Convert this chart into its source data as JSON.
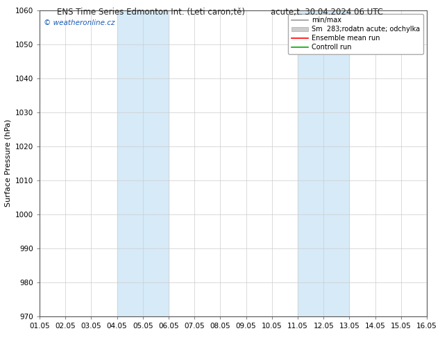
{
  "title_left": "ENS Time Series Edmonton Int. (Leti caron;tě)",
  "title_right": "acute;t. 30.04.2024 06 UTC",
  "ylabel": "Surface Pressure (hPa)",
  "ylim": [
    970,
    1060
  ],
  "yticks": [
    970,
    980,
    990,
    1000,
    1010,
    1020,
    1030,
    1040,
    1050,
    1060
  ],
  "xtick_labels": [
    "01.05",
    "02.05",
    "03.05",
    "04.05",
    "05.05",
    "06.05",
    "07.05",
    "08.05",
    "09.05",
    "10.05",
    "11.05",
    "12.05",
    "13.05",
    "14.05",
    "15.05",
    "16.05"
  ],
  "shade_bands": [
    {
      "xstart": 3,
      "xend": 5
    },
    {
      "xstart": 10,
      "xend": 12
    }
  ],
  "shade_color": "#d6eaf8",
  "watermark": "© weatheronline.cz",
  "watermark_color": "#1a5db5",
  "legend_labels": [
    "min/max",
    "Sm  283;rodatn acute; odchylka",
    "Ensemble mean run",
    "Controll run"
  ],
  "legend_colors": [
    "#999999",
    "#cccccc",
    "#ff0000",
    "#00aa00"
  ],
  "bg_color": "#ffffff",
  "plot_bg_color": "#ffffff",
  "grid_color": "#cccccc",
  "title_fontsize": 8.5,
  "ylabel_fontsize": 8,
  "tick_fontsize": 7.5,
  "legend_fontsize": 7,
  "watermark_fontsize": 7.5,
  "n_xpoints": 16
}
